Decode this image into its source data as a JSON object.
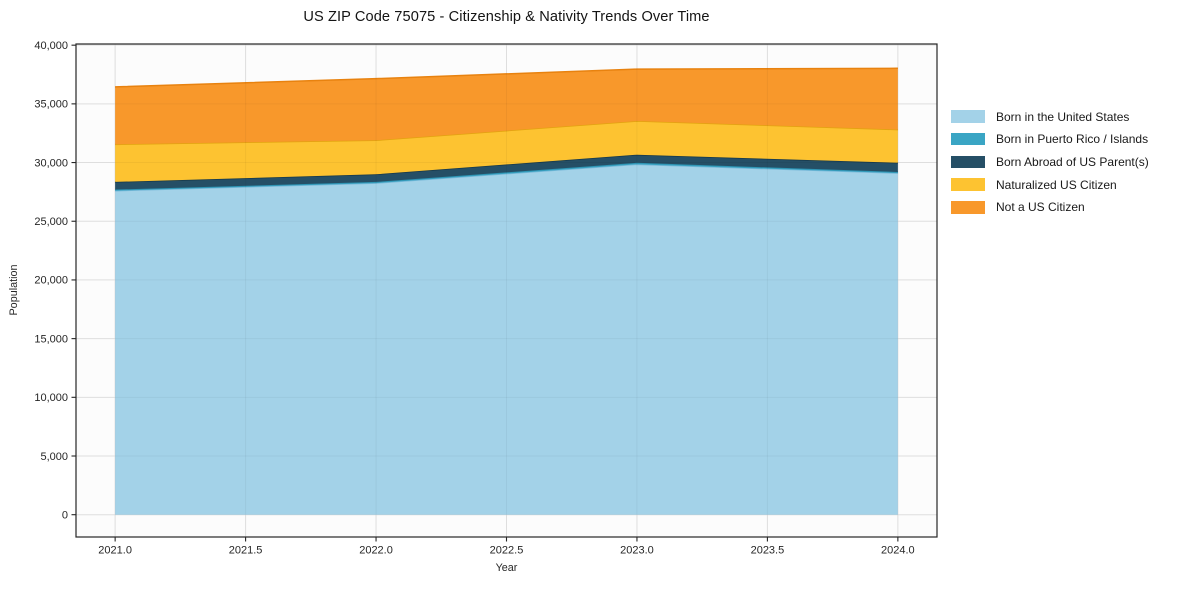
{
  "chart_data": {
    "type": "area",
    "stacked": true,
    "title": "US ZIP Code 75075 - Citizenship & Nativity Trends Over Time",
    "xlabel": "Year",
    "ylabel": "Population",
    "x": [
      2021,
      2022,
      2023,
      2024
    ],
    "series": [
      {
        "name": "Born in the United States",
        "color": "#a3d2e8",
        "edge": "#79b9d9",
        "values": [
          27600,
          28250,
          29850,
          29100
        ]
      },
      {
        "name": "Born in Puerto Rico / Islands",
        "color": "#3aa5c4",
        "edge": "#2b8fae",
        "values": [
          100,
          100,
          130,
          100
        ]
      },
      {
        "name": "Born Abroad of US Parent(s)",
        "color": "#254f66",
        "edge": "#16384a",
        "values": [
          650,
          650,
          690,
          780
        ]
      },
      {
        "name": "Naturalized US Citizen",
        "color": "#fdc331",
        "edge": "#e2a30f",
        "values": [
          3200,
          2900,
          2870,
          2830
        ]
      },
      {
        "name": "Not a US Citizen",
        "color": "#f8982b",
        "edge": "#e8820f",
        "values": [
          4900,
          5250,
          4420,
          5220
        ]
      }
    ],
    "x_ticks": [
      2021.0,
      2021.5,
      2022.0,
      2022.5,
      2023.0,
      2023.5,
      2024.0
    ],
    "y_ticks": [
      0,
      5000,
      10000,
      15000,
      20000,
      25000,
      30000,
      35000,
      40000
    ],
    "xlim": [
      2020.85,
      2024.15
    ],
    "ylim": [
      -1900,
      40100
    ],
    "grid": true,
    "legend_position": "right-outside",
    "plot_bg": "#fcfcfc",
    "grid_color": "#e8e8e8",
    "spine_color": "#262626",
    "tick_label_color": "#262626"
  }
}
